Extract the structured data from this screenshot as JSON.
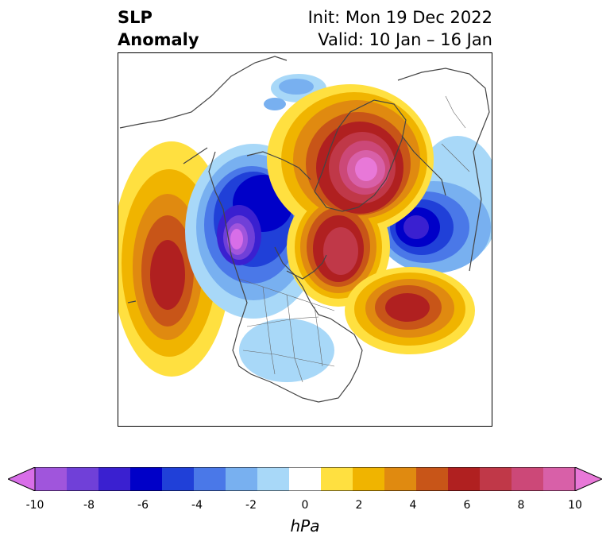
{
  "title": {
    "variable_line1": "SLP",
    "variable_line2": "Anomaly",
    "init": "Init: Mon 19 Dec 2022",
    "valid": "Valid: 10 Jan – 16 Jan"
  },
  "colorbar": {
    "unit": "hPa",
    "ticks": [
      "-10",
      "-8",
      "-6",
      "-4",
      "-2",
      "0",
      "2",
      "4",
      "6",
      "8",
      "10"
    ],
    "colors": [
      "#d86ee8",
      "#a055dc",
      "#7040d8",
      "#3a20d0",
      "#0000c8",
      "#2040d8",
      "#4a78e8",
      "#78b0f0",
      "#a8d8f8",
      "#ffffff",
      "#ffe040",
      "#f0b400",
      "#e08a10",
      "#c85518",
      "#b02020",
      "#c03848",
      "#cc4878",
      "#d860a8",
      "#e878d8"
    ]
  },
  "map": {
    "projection": "north-polar-stereographic",
    "features": [
      "north-atlantic-high-anomaly",
      "greenland-arctic-high-anomaly",
      "eastern-pacific-high-anomaly",
      "north-pacific-low-anomaly",
      "siberia-low-anomaly",
      "north-america-low-anomaly"
    ]
  }
}
